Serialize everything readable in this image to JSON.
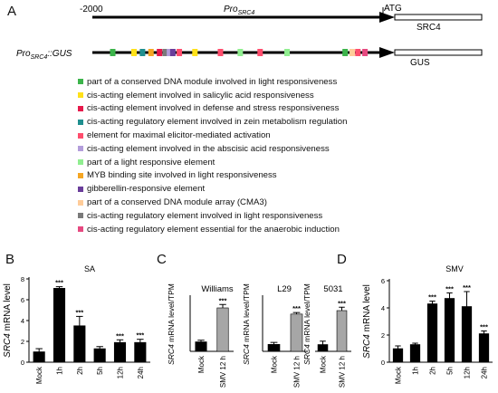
{
  "panels": {
    "a": "A",
    "b": "B",
    "c": "C",
    "d": "D"
  },
  "panel_a": {
    "start_label": "-2000",
    "promoter_label": "Pro",
    "promoter_sub": "SRC4",
    "atg_label": "ATG",
    "gene_label": "SRC4",
    "construct_label_pre": "Pro",
    "construct_label_sub": "SRC4",
    "construct_label_post": "::GUS",
    "gus_label": "GUS",
    "legend": [
      {
        "color": "#3cb44b",
        "text": "part of a conserved DNA module involved in light responsiveness"
      },
      {
        "color": "#ffe119",
        "text": "cis-acting element involved in salicylic acid responsiveness"
      },
      {
        "color": "#e6194b",
        "text": "cis-acting element involved in defense and stress responsiveness"
      },
      {
        "color": "#1f8f8f",
        "text": "cis-acting regulatory element involved in zein metabolism regulation"
      },
      {
        "color": "#ff4d6d",
        "text": "element for maximal elicitor-mediated activation"
      },
      {
        "color": "#b39ddb",
        "text": "cis-acting element involved in the abscisic acid responsiveness"
      },
      {
        "color": "#90ee90",
        "text": "part of a light responsive element"
      },
      {
        "color": "#f5a623",
        "text": "MYB binding site involved in light responsiveness"
      },
      {
        "color": "#6a3d9a",
        "text": "gibberellin-responsive element"
      },
      {
        "color": "#ffcc99",
        "text": "part of a conserved DNA module array (CMA3)"
      },
      {
        "color": "#7a7a7a",
        "text": "cis-acting regulatory element involved in light responsiveness"
      },
      {
        "color": "#e64980",
        "text": "cis-acting regulatory element essential for the anaerobic induction"
      }
    ],
    "marks": [
      {
        "pos": 0.04,
        "type": 0
      },
      {
        "pos": 0.115,
        "type": 1
      },
      {
        "pos": 0.145,
        "type": 3
      },
      {
        "pos": 0.175,
        "type": 7
      },
      {
        "pos": 0.205,
        "type": 2
      },
      {
        "pos": 0.225,
        "type": 10
      },
      {
        "pos": 0.24,
        "type": 5
      },
      {
        "pos": 0.252,
        "type": 8
      },
      {
        "pos": 0.275,
        "type": 4
      },
      {
        "pos": 0.33,
        "type": 1
      },
      {
        "pos": 0.42,
        "type": 4
      },
      {
        "pos": 0.49,
        "type": 6
      },
      {
        "pos": 0.56,
        "type": 4
      },
      {
        "pos": 0.655,
        "type": 6
      },
      {
        "pos": 0.86,
        "type": 0
      },
      {
        "pos": 0.885,
        "type": 9
      },
      {
        "pos": 0.905,
        "type": 4
      },
      {
        "pos": 0.93,
        "type": 11
      }
    ]
  },
  "chart_data": [
    {
      "panel": "B",
      "type": "bar",
      "title": "SA",
      "categories": [
        "Mock",
        "1h",
        "2h",
        "5h",
        "12h",
        "24h"
      ],
      "values": [
        1.0,
        7.1,
        3.5,
        1.3,
        1.9,
        1.9
      ],
      "errors": [
        0.3,
        0.15,
        0.9,
        0.2,
        0.25,
        0.3
      ],
      "significance": [
        "",
        "***",
        "***",
        "",
        "***",
        "***"
      ],
      "ylabel": "mRNA level",
      "ylabel_italic": "SRC4",
      "ylim": [
        0,
        8
      ],
      "yticks": [
        0,
        2,
        4,
        6,
        8
      ]
    },
    {
      "panel": "C1",
      "type": "bar",
      "title": "Williams",
      "categories": [
        "Mock",
        "SMV 12 h"
      ],
      "values": [
        7,
        32
      ],
      "errors": [
        1.2,
        2.5
      ],
      "significance": [
        "",
        "***"
      ],
      "colors": [
        "#000000",
        "#a6a6a6"
      ],
      "ylabel": "mRNA level/TPM",
      "ylabel_italic": "SRC4",
      "ylim": [
        0,
        40
      ]
    },
    {
      "panel": "C2",
      "type": "bar",
      "title": "L29",
      "categories": [
        "Mock",
        "SMV 12 h"
      ],
      "values": [
        1.8,
        9.6
      ],
      "errors": [
        0.5,
        0.4
      ],
      "significance": [
        "",
        "***"
      ],
      "colors": [
        "#000000",
        "#a6a6a6"
      ],
      "ylabel": "mRNA level/TPM",
      "ylabel_italic": "SRC4",
      "ylim": [
        0,
        14
      ]
    },
    {
      "panel": "C3",
      "type": "bar",
      "title": "5031",
      "categories": [
        "Mock",
        "SMV 12 h"
      ],
      "values": [
        2.0,
        12.0
      ],
      "errors": [
        1.0,
        1.0
      ],
      "significance": [
        "",
        "***"
      ],
      "colors": [
        "#000000",
        "#a6a6a6"
      ],
      "ylabel": "mRNA level/TPM",
      "ylabel_italic": "SRC4",
      "ylim": [
        0,
        16
      ]
    },
    {
      "panel": "D",
      "type": "bar",
      "title": "SMV",
      "categories": [
        "Mock",
        "1h",
        "2h",
        "5h",
        "12h",
        "24h"
      ],
      "values": [
        1.0,
        1.3,
        4.3,
        4.7,
        4.1,
        2.1
      ],
      "errors": [
        0.2,
        0.1,
        0.2,
        0.4,
        1.1,
        0.2
      ],
      "significance": [
        "",
        "",
        "***",
        "***",
        "***",
        "***"
      ],
      "ylabel": "mRNA level",
      "ylabel_italic": "SRC4",
      "ylim": [
        0,
        6
      ],
      "yticks": [
        0,
        2,
        4,
        6
      ]
    }
  ]
}
